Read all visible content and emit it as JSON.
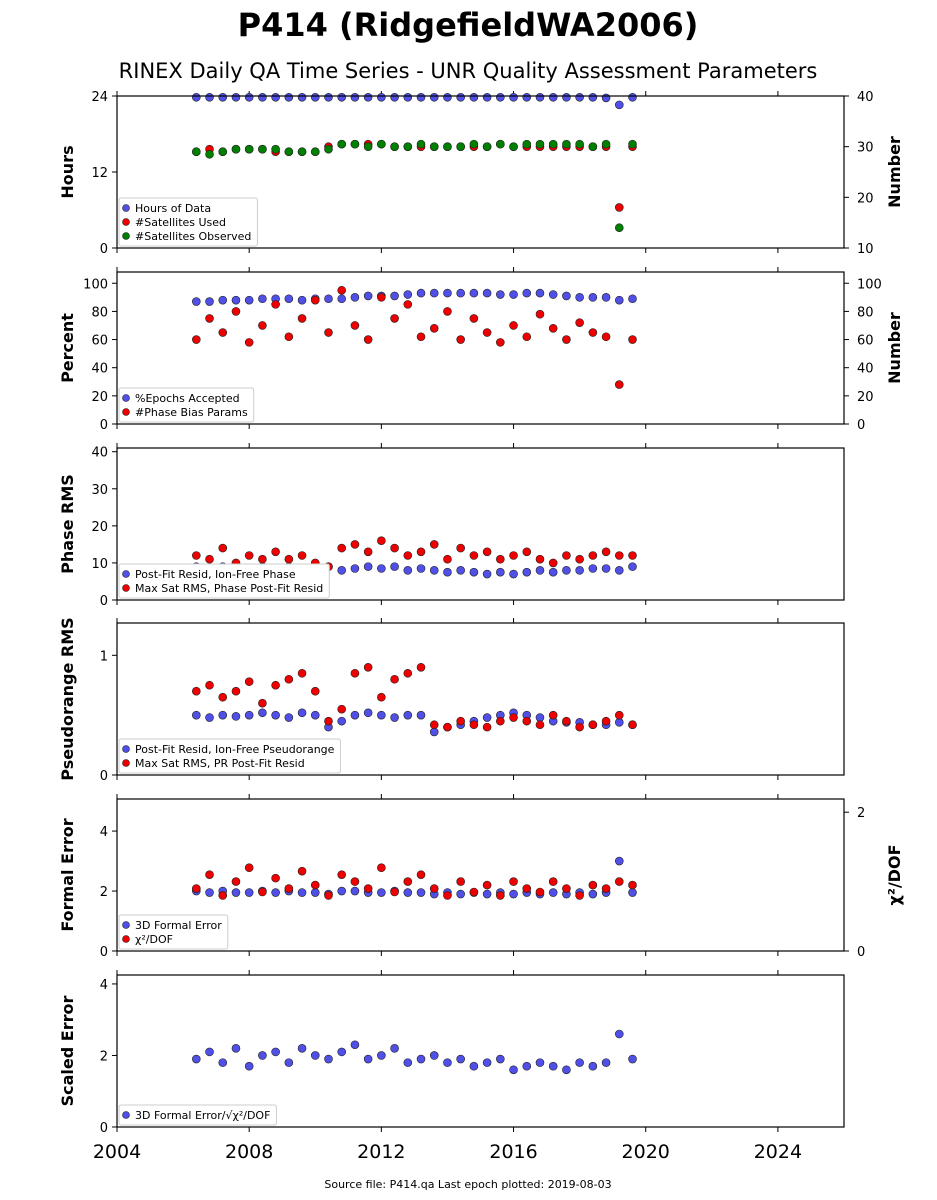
{
  "title": "P414 (RidgefieldWA2006)",
  "subtitle": "RINEX Daily QA Time Series - UNR Quality Assessment Parameters",
  "footer": "Source file: P414.qa Last epoch plotted: 2019-08-03",
  "chart_data": [
    {
      "type": "scatter",
      "ylabel": "Hours",
      "ylim": [
        0,
        24
      ],
      "yticks": [
        0,
        12,
        24
      ],
      "y2label": "Number",
      "y2lim": [
        10,
        40
      ],
      "y2ticks": [
        10,
        20,
        30,
        40
      ],
      "legend": "lower left",
      "x": [
        2006.4,
        2006.8,
        2007.2,
        2007.6,
        2008.0,
        2008.4,
        2008.8,
        2009.2,
        2009.6,
        2010.0,
        2010.4,
        2010.8,
        2011.2,
        2011.6,
        2012.0,
        2012.4,
        2012.8,
        2013.2,
        2013.6,
        2014.0,
        2014.4,
        2014.8,
        2015.2,
        2015.6,
        2016.0,
        2016.4,
        2016.8,
        2017.2,
        2017.6,
        2018.0,
        2018.4,
        2018.8,
        2019.2,
        2019.6
      ],
      "series": [
        {
          "name": "Hours of Data",
          "color": "#5050e8",
          "values": [
            23.8,
            23.8,
            23.8,
            23.8,
            23.8,
            23.8,
            23.8,
            23.8,
            23.8,
            23.8,
            23.8,
            23.8,
            23.8,
            23.8,
            23.8,
            23.8,
            23.8,
            23.8,
            23.8,
            23.8,
            23.8,
            23.8,
            23.8,
            23.8,
            23.8,
            23.8,
            23.8,
            23.8,
            23.8,
            23.8,
            23.8,
            23.7,
            22.6,
            23.8
          ]
        },
        {
          "name": "#Satellites Used",
          "color": "#ee0000",
          "axis": "y2",
          "values": [
            29,
            29.5,
            29,
            29.5,
            29.5,
            29.5,
            29,
            29,
            29,
            29,
            30,
            30.5,
            30.5,
            30.5,
            30.5,
            30,
            30,
            30,
            30,
            30,
            30,
            30,
            30,
            30.5,
            30,
            30,
            30,
            30,
            30,
            30,
            30,
            30,
            18,
            30
          ]
        },
        {
          "name": "#Satellites Observed",
          "color": "#008000",
          "axis": "y2",
          "values": [
            29,
            28.5,
            29,
            29.5,
            29.5,
            29.5,
            29.5,
            29,
            29,
            29,
            29.5,
            30.5,
            30.5,
            30,
            30.5,
            30,
            30,
            30.5,
            30,
            30,
            30,
            30.5,
            30,
            30.5,
            30,
            30.5,
            30.5,
            30.5,
            30.5,
            30.5,
            30,
            30.5,
            14,
            30.5
          ]
        }
      ]
    },
    {
      "type": "scatter",
      "ylabel": "Percent",
      "ylim": [
        0,
        108
      ],
      "yticks": [
        0,
        20,
        40,
        60,
        80,
        100
      ],
      "y2label": "Number",
      "y2lim": [
        0,
        108
      ],
      "y2ticks": [
        0,
        20,
        40,
        60,
        80,
        100
      ],
      "legend": "lower left",
      "x": [
        2006.4,
        2006.8,
        2007.2,
        2007.6,
        2008.0,
        2008.4,
        2008.8,
        2009.2,
        2009.6,
        2010.0,
        2010.4,
        2010.8,
        2011.2,
        2011.6,
        2012.0,
        2012.4,
        2012.8,
        2013.2,
        2013.6,
        2014.0,
        2014.4,
        2014.8,
        2015.2,
        2015.6,
        2016.0,
        2016.4,
        2016.8,
        2017.2,
        2017.6,
        2018.0,
        2018.4,
        2018.8,
        2019.2,
        2019.6
      ],
      "series": [
        {
          "name": "%Epochs Accepted",
          "color": "#5050e8",
          "values": [
            87,
            87,
            88,
            88,
            88,
            89,
            89,
            89,
            88,
            89,
            89,
            89,
            90,
            91,
            91,
            91,
            92,
            93,
            93,
            93,
            93,
            93,
            93,
            92,
            92,
            93,
            93,
            92,
            91,
            90,
            90,
            90,
            88,
            89
          ]
        },
        {
          "name": "#Phase Bias Params",
          "color": "#ee0000",
          "axis": "y2",
          "values": [
            60,
            75,
            65,
            80,
            58,
            70,
            85,
            62,
            75,
            88,
            65,
            95,
            70,
            60,
            90,
            75,
            85,
            62,
            68,
            80,
            60,
            75,
            65,
            58,
            70,
            62,
            78,
            68,
            60,
            72,
            65,
            62,
            28,
            60
          ]
        }
      ]
    },
    {
      "type": "scatter",
      "ylabel": "Phase RMS",
      "ylim": [
        0,
        41
      ],
      "yticks": [
        0,
        10,
        20,
        30,
        40
      ],
      "legend": "lower left",
      "x": [
        2006.4,
        2006.8,
        2007.2,
        2007.6,
        2008.0,
        2008.4,
        2008.8,
        2009.2,
        2009.6,
        2010.0,
        2010.4,
        2010.8,
        2011.2,
        2011.6,
        2012.0,
        2012.4,
        2012.8,
        2013.2,
        2013.6,
        2014.0,
        2014.4,
        2014.8,
        2015.2,
        2015.6,
        2016.0,
        2016.4,
        2016.8,
        2017.2,
        2017.6,
        2018.0,
        2018.4,
        2018.8,
        2019.2,
        2019.6
      ],
      "series": [
        {
          "name": "Post-Fit Resid, Ion-Free Phase",
          "color": "#5050e8",
          "values": [
            9,
            8.5,
            9,
            8,
            8.5,
            9,
            8,
            9,
            8.5,
            9,
            9,
            8,
            8.5,
            9,
            8.5,
            9,
            8,
            8.5,
            8,
            7.5,
            8,
            7.5,
            7,
            7.5,
            7,
            7.5,
            8,
            7.5,
            8,
            8,
            8.5,
            8.5,
            8,
            9
          ]
        },
        {
          "name": "Max Sat RMS, Phase Post-Fit Resid",
          "color": "#ee0000",
          "values": [
            12,
            11,
            14,
            10,
            12,
            11,
            13,
            11,
            12,
            10,
            9,
            14,
            15,
            13,
            16,
            14,
            12,
            13,
            15,
            11,
            14,
            12,
            13,
            11,
            12,
            13,
            11,
            10,
            12,
            11,
            12,
            13,
            12,
            12
          ]
        }
      ]
    },
    {
      "type": "scatter",
      "ylabel": "Pseudorange RMS",
      "ylim": [
        0,
        1.27
      ],
      "yticks": [
        0,
        1
      ],
      "legend": "lower left",
      "x": [
        2006.4,
        2006.8,
        2007.2,
        2007.6,
        2008.0,
        2008.4,
        2008.8,
        2009.2,
        2009.6,
        2010.0,
        2010.4,
        2010.8,
        2011.2,
        2011.6,
        2012.0,
        2012.4,
        2012.8,
        2013.2,
        2013.6,
        2014.0,
        2014.4,
        2014.8,
        2015.2,
        2015.6,
        2016.0,
        2016.4,
        2016.8,
        2017.2,
        2017.6,
        2018.0,
        2018.4,
        2018.8,
        2019.2,
        2019.6
      ],
      "series": [
        {
          "name": "Post-Fit Resid, Ion-Free Pseudorange",
          "color": "#5050e8",
          "values": [
            0.5,
            0.48,
            0.5,
            0.49,
            0.5,
            0.52,
            0.5,
            0.48,
            0.52,
            0.5,
            0.4,
            0.45,
            0.5,
            0.52,
            0.5,
            0.48,
            0.5,
            0.5,
            0.36,
            0.4,
            0.42,
            0.45,
            0.48,
            0.5,
            0.52,
            0.5,
            0.48,
            0.45,
            0.44,
            0.44,
            0.42,
            0.42,
            0.44,
            0.42
          ]
        },
        {
          "name": "Max Sat RMS, PR Post-Fit Resid",
          "color": "#ee0000",
          "values": [
            0.7,
            0.75,
            0.65,
            0.7,
            0.78,
            0.6,
            0.75,
            0.8,
            0.85,
            0.7,
            0.45,
            0.55,
            0.85,
            0.9,
            0.65,
            0.8,
            0.85,
            0.9,
            0.42,
            0.4,
            0.45,
            0.42,
            0.4,
            0.45,
            0.48,
            0.45,
            0.42,
            0.5,
            0.45,
            0.4,
            0.42,
            0.45,
            0.5,
            0.42
          ]
        }
      ]
    },
    {
      "type": "scatter",
      "ylabel": "Formal Error",
      "ylim": [
        0,
        5.07
      ],
      "yticks": [
        0,
        2,
        4
      ],
      "y2label": "χ²/DOF",
      "y2lim": [
        0,
        2.19
      ],
      "y2ticks": [
        0,
        2
      ],
      "legend": "lower left",
      "x": [
        2006.4,
        2006.8,
        2007.2,
        2007.6,
        2008.0,
        2008.4,
        2008.8,
        2009.2,
        2009.6,
        2010.0,
        2010.4,
        2010.8,
        2011.2,
        2011.6,
        2012.0,
        2012.4,
        2012.8,
        2013.2,
        2013.6,
        2014.0,
        2014.4,
        2014.8,
        2015.2,
        2015.6,
        2016.0,
        2016.4,
        2016.8,
        2017.2,
        2017.6,
        2018.0,
        2018.4,
        2018.8,
        2019.2,
        2019.6
      ],
      "series": [
        {
          "name": "3D Formal Error",
          "color": "#5050e8",
          "values": [
            2,
            1.95,
            2,
            1.95,
            1.95,
            2,
            1.95,
            2,
            1.95,
            1.95,
            1.9,
            2,
            2,
            1.95,
            1.95,
            2,
            1.95,
            1.95,
            1.9,
            1.95,
            1.9,
            1.95,
            1.9,
            1.95,
            1.9,
            1.95,
            1.9,
            1.95,
            1.9,
            1.95,
            1.9,
            1.95,
            3,
            1.95
          ]
        },
        {
          "name": "χ²/DOF",
          "color": "#ee0000",
          "axis": "y2",
          "values": [
            0.9,
            1.1,
            0.8,
            1.0,
            1.2,
            0.85,
            1.05,
            0.9,
            1.15,
            0.95,
            0.8,
            1.1,
            1.0,
            0.9,
            1.2,
            0.85,
            1.0,
            1.1,
            0.9,
            0.8,
            1.0,
            0.85,
            0.95,
            0.8,
            1.0,
            0.9,
            0.85,
            1.0,
            0.9,
            0.8,
            0.95,
            0.9,
            1.0,
            0.95
          ]
        }
      ]
    },
    {
      "type": "scatter",
      "ylabel": "Scaled Error",
      "ylim": [
        0,
        4.25
      ],
      "yticks": [
        0,
        2,
        4
      ],
      "legend": "lower left",
      "xlim": [
        2004,
        2026
      ],
      "xticks": [
        2004,
        2008,
        2012,
        2016,
        2020,
        2024
      ],
      "x": [
        2006.4,
        2006.8,
        2007.2,
        2007.6,
        2008.0,
        2008.4,
        2008.8,
        2009.2,
        2009.6,
        2010.0,
        2010.4,
        2010.8,
        2011.2,
        2011.6,
        2012.0,
        2012.4,
        2012.8,
        2013.2,
        2013.6,
        2014.0,
        2014.4,
        2014.8,
        2015.2,
        2015.6,
        2016.0,
        2016.4,
        2016.8,
        2017.2,
        2017.6,
        2018.0,
        2018.4,
        2018.8,
        2019.2,
        2019.6
      ],
      "series": [
        {
          "name": "3D Formal Error/√χ²/DOF",
          "color": "#5050e8",
          "values": [
            1.9,
            2.1,
            1.8,
            2.2,
            1.7,
            2.0,
            2.1,
            1.8,
            2.2,
            2.0,
            1.9,
            2.1,
            2.3,
            1.9,
            2.0,
            2.2,
            1.8,
            1.9,
            2.0,
            1.8,
            1.9,
            1.7,
            1.8,
            1.9,
            1.6,
            1.7,
            1.8,
            1.7,
            1.6,
            1.8,
            1.7,
            1.8,
            2.6,
            1.9
          ]
        }
      ]
    }
  ]
}
